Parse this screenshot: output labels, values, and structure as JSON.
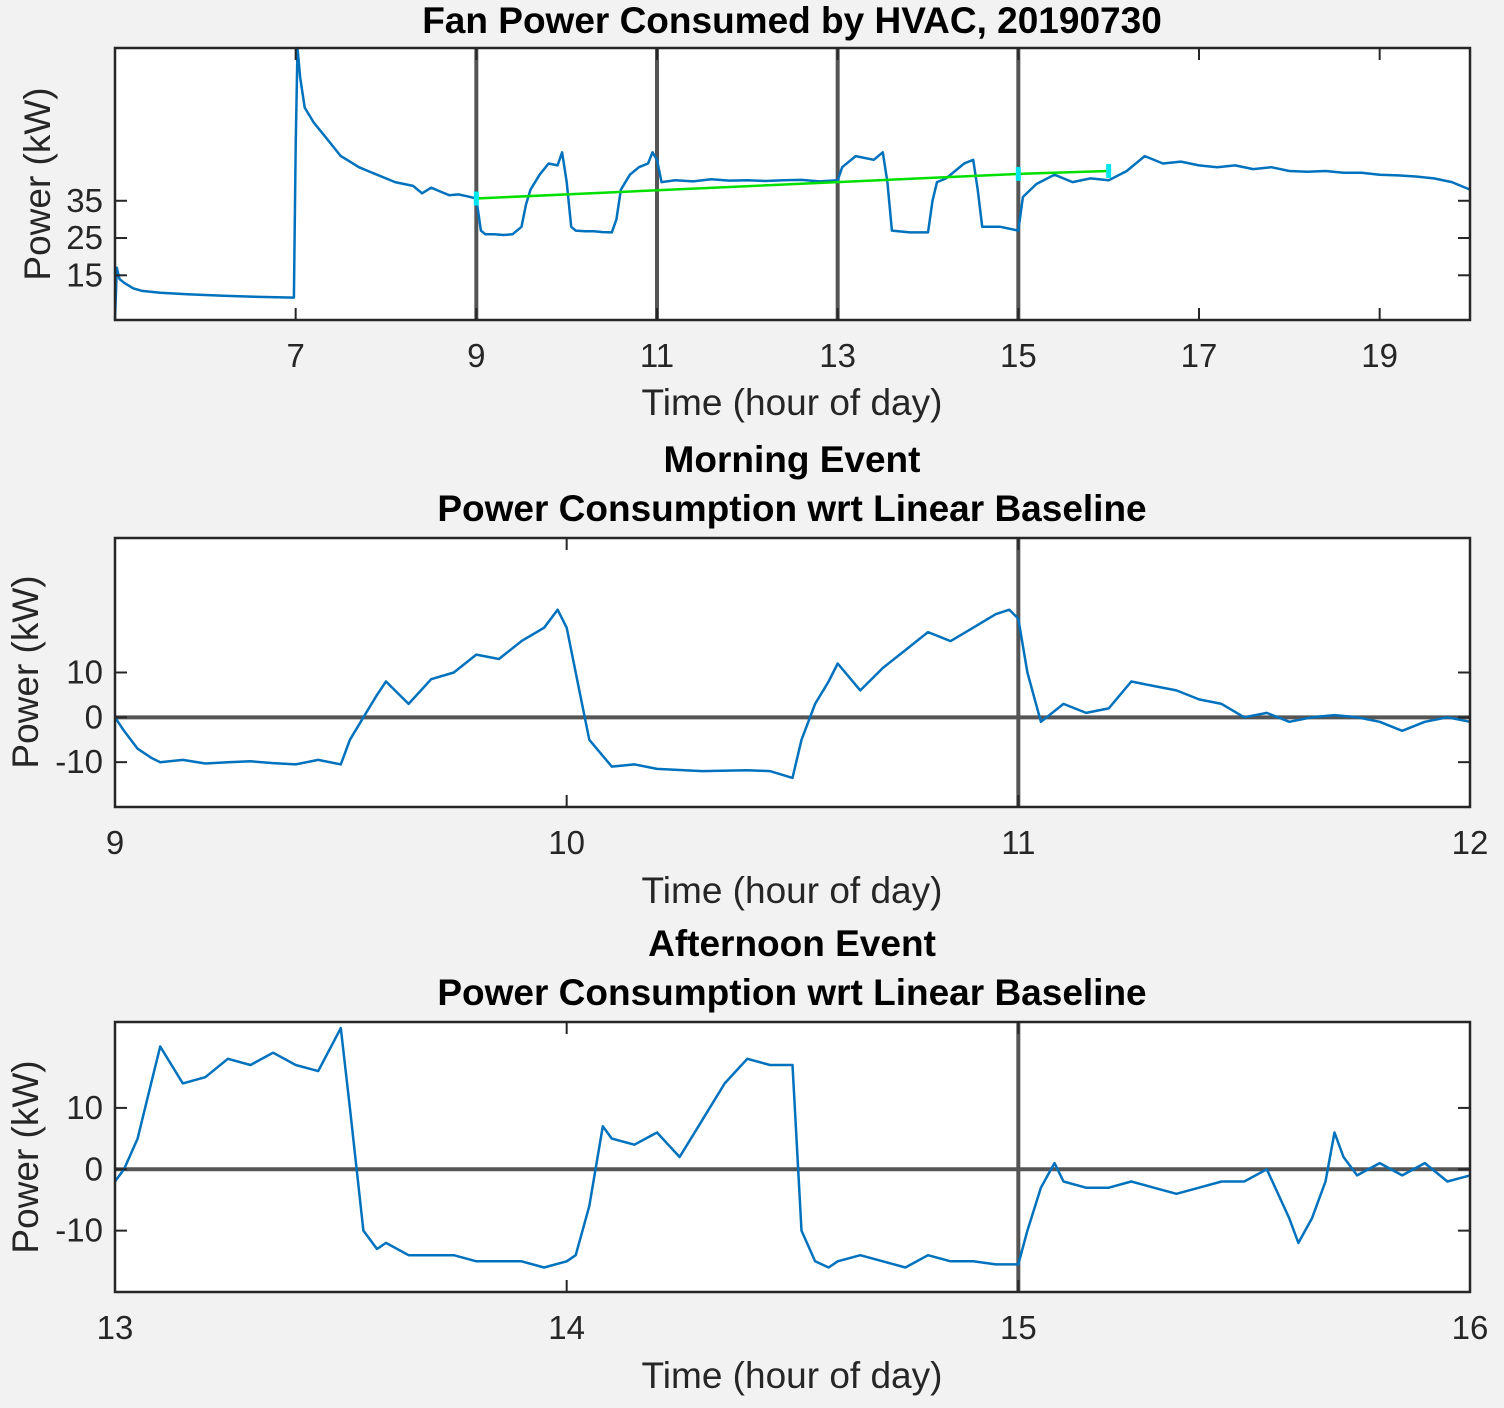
{
  "colors": {
    "figure_bg": "#f2f2f2",
    "axes_bg": "#ffffff",
    "axis": "#262626",
    "reference_line": "#555555",
    "series": "#0072bd",
    "baseline": "#00e000",
    "markers": "#00e5ee"
  },
  "chart_data": [
    {
      "type": "line",
      "title": "Fan Power Consumed by HVAC, 20190730",
      "xlabel": "Time (hour of day)",
      "ylabel": "Power (kW)",
      "xlim": [
        5,
        20
      ],
      "ylim": [
        3,
        76
      ],
      "xticks": [
        7,
        9,
        11,
        13,
        15,
        17,
        19
      ],
      "yticks": [
        15,
        25,
        35
      ],
      "grid": false,
      "vertical_lines": [
        9,
        11,
        13,
        15
      ],
      "series": [
        {
          "x": [
            5.0,
            5.02,
            5.05,
            5.1,
            5.2,
            5.3,
            5.5,
            5.8,
            6.2,
            6.6,
            6.98,
            7.0,
            7.02,
            7.05,
            7.1,
            7.2,
            7.3,
            7.4,
            7.5,
            7.6,
            7.7,
            7.8,
            7.9,
            8.0,
            8.1,
            8.2,
            8.3,
            8.4,
            8.5,
            8.6,
            8.7,
            8.8,
            8.9,
            9.0,
            9.05,
            9.1,
            9.2,
            9.3,
            9.4,
            9.5,
            9.55,
            9.6,
            9.7,
            9.8,
            9.9,
            9.95,
            10.0,
            10.05,
            10.1,
            10.2,
            10.3,
            10.4,
            10.5,
            10.55,
            10.6,
            10.7,
            10.8,
            10.9,
            10.95,
            11.0,
            11.05,
            11.2,
            11.4,
            11.6,
            11.8,
            12.0,
            12.2,
            12.4,
            12.6,
            12.8,
            13.0,
            13.05,
            13.2,
            13.4,
            13.5,
            13.55,
            13.6,
            13.8,
            14.0,
            14.05,
            14.1,
            14.2,
            14.3,
            14.4,
            14.5,
            14.55,
            14.6,
            14.8,
            15.0,
            15.05,
            15.2,
            15.4,
            15.6,
            15.8,
            16.0,
            16.2,
            16.4,
            16.6,
            16.8,
            17.0,
            17.2,
            17.4,
            17.6,
            17.8,
            18.0,
            18.2,
            18.4,
            18.6,
            18.8,
            19.0,
            19.2,
            19.4,
            19.6,
            19.8,
            20.0
          ],
          "y": [
            3,
            17,
            14,
            13,
            11.5,
            10.8,
            10.3,
            9.9,
            9.5,
            9.2,
            9.0,
            50,
            76,
            68,
            60,
            56,
            53,
            50,
            47,
            45.5,
            44,
            43,
            42,
            41,
            40,
            39.5,
            39,
            37,
            38.5,
            37.5,
            36.5,
            36.7,
            36.2,
            35.6,
            27,
            26,
            26,
            25.8,
            26,
            28,
            34,
            38,
            42,
            45,
            44.5,
            48,
            40,
            28,
            27,
            26.8,
            26.8,
            26.6,
            26.5,
            30,
            38,
            42,
            44,
            45,
            48,
            46,
            40,
            40.5,
            40.2,
            40.8,
            40.4,
            40.5,
            40.3,
            40.5,
            40.6,
            40.2,
            40.5,
            44,
            47,
            46,
            48,
            40,
            27,
            26.5,
            26.5,
            35,
            40,
            41,
            43,
            45,
            46,
            38,
            28,
            28,
            27,
            36,
            39.5,
            42,
            40,
            41,
            40.5,
            43,
            47,
            45,
            45.5,
            44.5,
            44,
            44.5,
            43.5,
            44,
            43,
            42.8,
            43,
            42.5,
            42.5,
            42,
            41.8,
            41.5,
            41,
            40,
            38
          ]
        },
        {
          "name": "",
          "x": [
            9.0,
            15.0,
            16.0
          ],
          "y": [
            35.6,
            42.2,
            43.0
          ]
        }
      ]
    },
    {
      "type": "line",
      "title": [
        "Morning Event",
        "Power Consumption wrt Linear Baseline"
      ],
      "xlabel": "Time (hour of day)",
      "ylabel": "Power (kW)",
      "xlim": [
        9,
        12
      ],
      "ylim": [
        -20,
        40
      ],
      "xticks": [
        9,
        10,
        11,
        12
      ],
      "yticks": [
        -10,
        0,
        10
      ],
      "grid": false,
      "vertical_lines": [
        11
      ],
      "horizontal_lines": [
        0
      ],
      "series": [
        {
          "x": [
            9.0,
            9.02,
            9.05,
            9.08,
            9.1,
            9.15,
            9.2,
            9.25,
            9.3,
            9.35,
            9.4,
            9.45,
            9.5,
            9.52,
            9.55,
            9.58,
            9.6,
            9.65,
            9.7,
            9.75,
            9.8,
            9.85,
            9.9,
            9.95,
            9.98,
            10.0,
            10.02,
            10.05,
            10.1,
            10.15,
            10.2,
            10.3,
            10.4,
            10.45,
            10.5,
            10.52,
            10.55,
            10.58,
            10.6,
            10.65,
            10.7,
            10.75,
            10.8,
            10.85,
            10.9,
            10.95,
            10.98,
            11.0,
            11.02,
            11.05,
            11.1,
            11.15,
            11.2,
            11.25,
            11.3,
            11.35,
            11.4,
            11.45,
            11.5,
            11.55,
            11.6,
            11.65,
            11.7,
            11.75,
            11.8,
            11.85,
            11.9,
            11.95,
            12.0
          ],
          "y": [
            0,
            -3,
            -7,
            -9,
            -10,
            -9.5,
            -10.3,
            -10,
            -9.8,
            -10.2,
            -10.5,
            -9.5,
            -10.5,
            -5,
            0,
            5,
            8,
            3,
            8.5,
            10,
            14,
            13,
            17,
            20,
            24,
            20,
            10,
            -5,
            -11,
            -10.5,
            -11.5,
            -12,
            -11.8,
            -12,
            -13.5,
            -5,
            3,
            8,
            12,
            6,
            11,
            15,
            19,
            17,
            20,
            23,
            24,
            22,
            10,
            -1,
            3,
            1,
            2,
            8,
            7,
            6,
            4,
            3,
            0,
            1,
            -1,
            0,
            0.5,
            0,
            -1,
            -3,
            -1,
            0,
            -1
          ]
        }
      ]
    },
    {
      "type": "line",
      "title": [
        "Afternoon Event",
        "Power Consumption wrt Linear Baseline"
      ],
      "xlabel": "Time (hour of day)",
      "ylabel": "Power (kW)",
      "xlim": [
        13,
        16
      ],
      "ylim": [
        -20,
        24
      ],
      "xticks": [
        13,
        14,
        15,
        16
      ],
      "yticks": [
        -10,
        0,
        10
      ],
      "grid": false,
      "vertical_lines": [
        15
      ],
      "horizontal_lines": [
        0
      ],
      "series": [
        {
          "x": [
            13.0,
            13.02,
            13.05,
            13.08,
            13.1,
            13.15,
            13.2,
            13.25,
            13.3,
            13.35,
            13.4,
            13.45,
            13.5,
            13.52,
            13.55,
            13.58,
            13.6,
            13.65,
            13.7,
            13.75,
            13.8,
            13.85,
            13.9,
            13.95,
            14.0,
            14.02,
            14.05,
            14.08,
            14.1,
            14.15,
            14.2,
            14.25,
            14.3,
            14.35,
            14.4,
            14.45,
            14.5,
            14.52,
            14.55,
            14.58,
            14.6,
            14.65,
            14.7,
            14.75,
            14.8,
            14.85,
            14.9,
            14.95,
            15.0,
            15.02,
            15.05,
            15.08,
            15.1,
            15.15,
            15.2,
            15.25,
            15.3,
            15.35,
            15.4,
            15.45,
            15.5,
            15.55,
            15.6,
            15.62,
            15.65,
            15.68,
            15.7,
            15.72,
            15.75,
            15.8,
            15.85,
            15.9,
            15.95,
            16.0
          ],
          "y": [
            -2,
            0,
            5,
            14,
            20,
            14,
            15,
            18,
            17,
            19,
            17,
            16,
            23,
            10,
            -10,
            -13,
            -12,
            -14,
            -14,
            -14,
            -15,
            -15,
            -15,
            -16,
            -15,
            -14,
            -6,
            7,
            5,
            4,
            6,
            2,
            8,
            14,
            18,
            17,
            17,
            -10,
            -15,
            -16,
            -15,
            -14,
            -15,
            -16,
            -14,
            -15,
            -15,
            -15.5,
            -15.5,
            -10,
            -3,
            1,
            -2,
            -3,
            -3,
            -2,
            -3,
            -4,
            -3,
            -2,
            -2,
            0,
            -8,
            -12,
            -8,
            -2,
            6,
            2,
            -1,
            1,
            -1,
            1,
            -2,
            -1
          ]
        }
      ]
    }
  ]
}
